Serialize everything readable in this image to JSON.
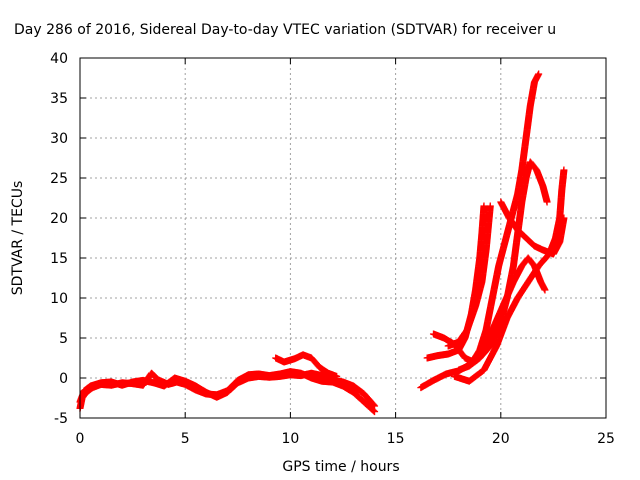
{
  "chart_data": {
    "type": "scatter",
    "title": "Day 286 of 2016, Sidereal Day-to-day VTEC variation (SDTVAR) for receiver u",
    "xlabel": "GPS time / hours",
    "ylabel": "SDTVAR / TECUs",
    "xlim": [
      0,
      25
    ],
    "ylim": [
      -5,
      40
    ],
    "x_ticks": [
      "0",
      "5",
      "10",
      "15",
      "20",
      "25"
    ],
    "y_ticks": [
      "-5",
      "0",
      "5",
      "10",
      "15",
      "20",
      "25",
      "30",
      "35",
      "40"
    ],
    "grid": true,
    "marker": "plus",
    "color": "#ff0000",
    "series": [
      {
        "traces": [
          [
            [
              0.0,
              -3.8
            ],
            [
              0.1,
              -2.5
            ],
            [
              0.3,
              -1.8
            ],
            [
              0.6,
              -1.2
            ],
            [
              1.0,
              -0.8
            ],
            [
              1.5,
              -0.9
            ],
            [
              2.0,
              -0.6
            ],
            [
              2.5,
              -0.7
            ],
            [
              3.0,
              -0.9
            ],
            [
              3.4,
              0.6
            ],
            [
              3.7,
              -0.2
            ],
            [
              4.2,
              -0.8
            ],
            [
              4.6,
              -0.5
            ],
            [
              5.0,
              -0.8
            ],
            [
              5.5,
              -1.5
            ],
            [
              6.0,
              -2.0
            ],
            [
              6.5,
              -2.1
            ],
            [
              7.0,
              -1.6
            ],
            [
              7.5,
              -0.3
            ],
            [
              8.0,
              0.4
            ],
            [
              8.5,
              0.5
            ],
            [
              9.0,
              0.3
            ],
            [
              9.5,
              0.5
            ],
            [
              10.0,
              0.8
            ],
            [
              10.5,
              0.6
            ],
            [
              11.0,
              0.0
            ],
            [
              11.5,
              -0.4
            ],
            [
              12.0,
              -0.5
            ],
            [
              12.5,
              -1.0
            ],
            [
              13.0,
              -1.8
            ],
            [
              13.5,
              -3.0
            ],
            [
              14.0,
              -4.2
            ]
          ],
          [
            [
              0.0,
              -3.0
            ],
            [
              0.2,
              -1.6
            ],
            [
              0.5,
              -1.0
            ],
            [
              1.0,
              -0.6
            ],
            [
              1.5,
              -0.5
            ],
            [
              2.0,
              -0.9
            ],
            [
              2.5,
              -0.5
            ],
            [
              3.0,
              -0.3
            ],
            [
              3.5,
              -0.6
            ],
            [
              4.0,
              -1.0
            ],
            [
              4.5,
              0.0
            ],
            [
              5.0,
              -0.4
            ],
            [
              5.5,
              -1.0
            ],
            [
              6.0,
              -1.8
            ],
            [
              6.5,
              -2.4
            ],
            [
              7.0,
              -1.8
            ],
            [
              7.5,
              -0.6
            ],
            [
              8.0,
              0.0
            ],
            [
              8.5,
              0.2
            ],
            [
              9.0,
              0.1
            ],
            [
              9.5,
              0.2
            ],
            [
              10.0,
              0.4
            ],
            [
              10.5,
              0.3
            ],
            [
              11.0,
              0.6
            ],
            [
              11.5,
              0.3
            ],
            [
              12.0,
              -0.2
            ],
            [
              12.5,
              -0.5
            ],
            [
              13.0,
              -1.0
            ],
            [
              13.5,
              -2.0
            ],
            [
              14.0,
              -3.5
            ]
          ],
          [
            [
              9.3,
              2.5
            ],
            [
              9.7,
              2.0
            ],
            [
              10.2,
              2.4
            ],
            [
              10.6,
              2.9
            ],
            [
              11.0,
              2.5
            ],
            [
              11.4,
              1.3
            ],
            [
              11.8,
              0.6
            ],
            [
              12.2,
              0.2
            ]
          ]
        ]
      },
      {
        "traces": [
          [
            [
              16.2,
              -1.2
            ],
            [
              16.8,
              -0.3
            ],
            [
              17.4,
              0.5
            ],
            [
              18.0,
              0.9
            ],
            [
              18.6,
              1.8
            ],
            [
              19.0,
              3.5
            ],
            [
              19.3,
              6.0
            ],
            [
              19.6,
              10.0
            ],
            [
              19.9,
              14.0
            ],
            [
              20.2,
              17.0
            ],
            [
              20.5,
              20.0
            ],
            [
              20.8,
              23.0
            ],
            [
              21.0,
              26.0
            ],
            [
              21.2,
              30.0
            ],
            [
              21.4,
              34.0
            ],
            [
              21.6,
              37.0
            ],
            [
              21.8,
              38.0
            ]
          ],
          [
            [
              16.5,
              2.5
            ],
            [
              17.0,
              2.8
            ],
            [
              17.5,
              3.0
            ],
            [
              18.0,
              3.5
            ],
            [
              18.3,
              5.0
            ],
            [
              18.6,
              8.0
            ],
            [
              18.8,
              11.0
            ],
            [
              19.0,
              15.0
            ],
            [
              19.1,
              18.0
            ],
            [
              19.2,
              21.5
            ]
          ],
          [
            [
              17.5,
              4.0
            ],
            [
              18.0,
              4.5
            ],
            [
              18.4,
              6.0
            ],
            [
              18.8,
              9.0
            ],
            [
              19.1,
              12.0
            ],
            [
              19.3,
              16.0
            ],
            [
              19.5,
              21.5
            ]
          ],
          [
            [
              16.8,
              5.5
            ],
            [
              17.3,
              5.0
            ],
            [
              17.8,
              4.2
            ],
            [
              18.3,
              2.5
            ],
            [
              18.7,
              2.0
            ],
            [
              19.1,
              3.0
            ],
            [
              19.6,
              6.0
            ],
            [
              20.1,
              9.0
            ],
            [
              20.6,
              12.0
            ],
            [
              21.0,
              14.0
            ],
            [
              21.3,
              15.0
            ],
            [
              21.6,
              14.0
            ],
            [
              21.9,
              12.0
            ],
            [
              22.1,
              11.0
            ]
          ],
          [
            [
              18.0,
              1.0
            ],
            [
              18.5,
              1.5
            ],
            [
              19.0,
              2.5
            ],
            [
              19.5,
              4.0
            ],
            [
              20.0,
              7.0
            ],
            [
              20.3,
              10.0
            ],
            [
              20.6,
              14.0
            ],
            [
              20.8,
              18.0
            ],
            [
              21.0,
              22.0
            ],
            [
              21.2,
              25.0
            ],
            [
              21.4,
              27.0
            ],
            [
              21.7,
              26.0
            ],
            [
              22.0,
              24.0
            ],
            [
              22.2,
              22.0
            ]
          ],
          [
            [
              17.8,
              0.2
            ],
            [
              18.5,
              -0.4
            ],
            [
              19.2,
              1.0
            ],
            [
              19.8,
              4.0
            ],
            [
              20.3,
              7.5
            ],
            [
              20.8,
              10.0
            ],
            [
              21.3,
              12.0
            ],
            [
              21.8,
              14.0
            ],
            [
              22.3,
              15.5
            ],
            [
              22.6,
              17.5
            ],
            [
              22.8,
              20.0
            ],
            [
              22.9,
              23.5
            ],
            [
              23.0,
              26.0
            ]
          ],
          [
            [
              20.0,
              22.0
            ],
            [
              20.4,
              20.0
            ],
            [
              20.8,
              18.5
            ],
            [
              21.2,
              17.5
            ],
            [
              21.6,
              16.5
            ],
            [
              22.0,
              16.0
            ],
            [
              22.5,
              15.5
            ],
            [
              22.8,
              17.0
            ],
            [
              23.0,
              20.0
            ]
          ]
        ]
      }
    ]
  }
}
